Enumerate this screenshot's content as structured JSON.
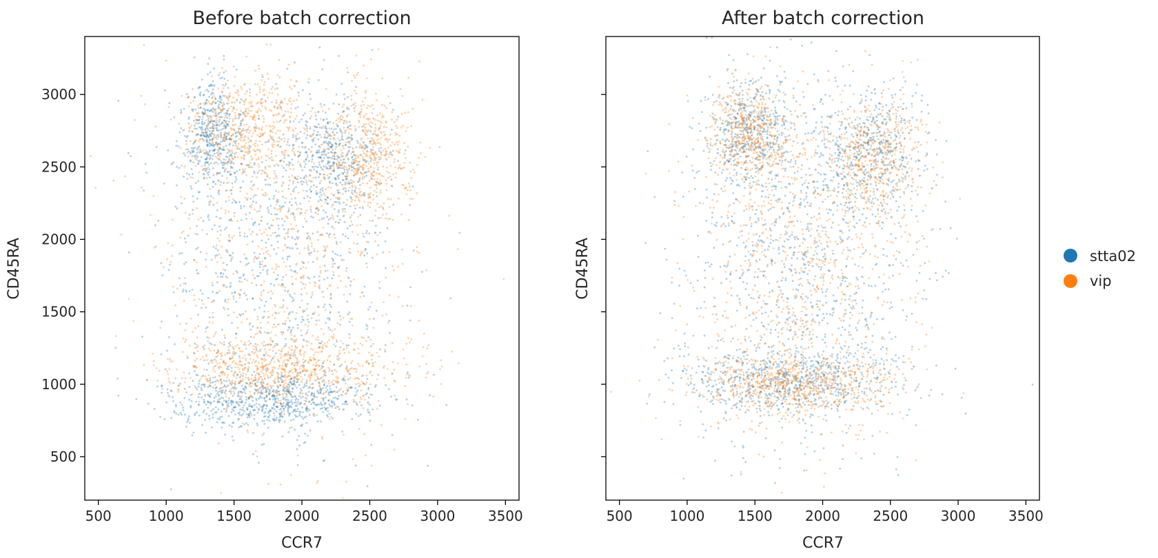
{
  "chart_data": [
    {
      "type": "scatter",
      "title": "Before batch correction",
      "xlabel": "CCR7",
      "ylabel": "CD45RA",
      "xlim": [
        400,
        3600
      ],
      "ylim": [
        200,
        3400
      ],
      "xticks": [
        500,
        1000,
        1500,
        2000,
        2500,
        3000,
        3500
      ],
      "yticks": [
        500,
        1000,
        1500,
        2000,
        2500,
        3000
      ],
      "ytick_labels_visible": true,
      "grid": false,
      "series": [
        {
          "name": "stta02",
          "color": "#1f77b4",
          "clusters": [
            {
              "cx": 1330,
              "cy": 2720,
              "sx": 110,
              "sy": 180,
              "weight": 0.18
            },
            {
              "cx": 2250,
              "cy": 2560,
              "sx": 180,
              "sy": 190,
              "weight": 0.16
            },
            {
              "cx": 1750,
              "cy": 900,
              "sx": 380,
              "sy": 100,
              "weight": 0.3
            },
            {
              "cx": 1800,
              "cy": 1900,
              "sx": 420,
              "sy": 650,
              "weight": 0.36
            }
          ]
        },
        {
          "name": "vip",
          "color": "#ff7f0e",
          "clusters": [
            {
              "cx": 1580,
              "cy": 2760,
              "sx": 220,
              "sy": 170,
              "weight": 0.2
            },
            {
              "cx": 2480,
              "cy": 2580,
              "sx": 160,
              "sy": 220,
              "weight": 0.2
            },
            {
              "cx": 1850,
              "cy": 1100,
              "sx": 420,
              "sy": 110,
              "weight": 0.28
            },
            {
              "cx": 1900,
              "cy": 1900,
              "sx": 450,
              "sy": 650,
              "weight": 0.32
            }
          ]
        }
      ]
    },
    {
      "type": "scatter",
      "title": "After batch correction",
      "xlabel": "CCR7",
      "ylabel": "CD45RA",
      "xlim": [
        400,
        3600
      ],
      "ylim": [
        200,
        3400
      ],
      "xticks": [
        500,
        1000,
        1500,
        2000,
        2500,
        3000,
        3500
      ],
      "yticks": [
        500,
        1000,
        1500,
        2000,
        2500,
        3000
      ],
      "ytick_labels_visible": false,
      "grid": false,
      "series": [
        {
          "name": "stta02",
          "color": "#1f77b4",
          "clusters": [
            {
              "cx": 1450,
              "cy": 2720,
              "sx": 160,
              "sy": 180,
              "weight": 0.18
            },
            {
              "cx": 2350,
              "cy": 2600,
              "sx": 200,
              "sy": 220,
              "weight": 0.18
            },
            {
              "cx": 1750,
              "cy": 1020,
              "sx": 380,
              "sy": 110,
              "weight": 0.26
            },
            {
              "cx": 1850,
              "cy": 1850,
              "sx": 430,
              "sy": 650,
              "weight": 0.38
            }
          ]
        },
        {
          "name": "vip",
          "color": "#ff7f0e",
          "clusters": [
            {
              "cx": 1450,
              "cy": 2720,
              "sx": 150,
              "sy": 170,
              "weight": 0.2
            },
            {
              "cx": 2380,
              "cy": 2560,
              "sx": 170,
              "sy": 210,
              "weight": 0.2
            },
            {
              "cx": 1800,
              "cy": 1000,
              "sx": 380,
              "sy": 110,
              "weight": 0.28
            },
            {
              "cx": 1850,
              "cy": 1850,
              "sx": 420,
              "sy": 620,
              "weight": 0.32
            }
          ]
        }
      ]
    }
  ],
  "legend": {
    "placement": "right",
    "items": [
      {
        "label": "stta02",
        "color": "#1f77b4"
      },
      {
        "label": "vip",
        "color": "#ff7f0e"
      }
    ]
  }
}
